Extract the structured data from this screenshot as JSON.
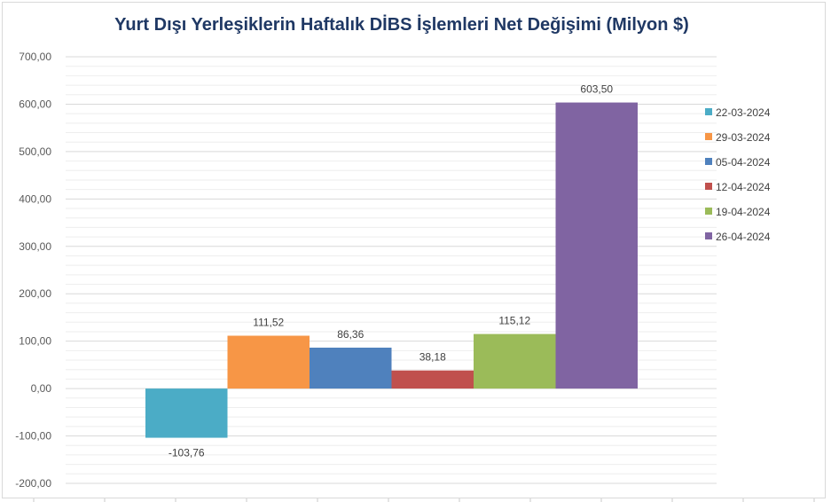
{
  "chart_data": {
    "type": "bar",
    "title": "Yurt Dışı Yerleşiklerin Haftalık DİBS İşlemleri Net Değişimi (Milyon $)",
    "xlabel": "",
    "ylabel": "",
    "ylim": [
      -200,
      700
    ],
    "y_ticks": [
      700,
      600,
      500,
      400,
      300,
      200,
      100,
      0,
      -100,
      -200
    ],
    "y_tick_labels": [
      "700,00",
      "600,00",
      "500,00",
      "400,00",
      "300,00",
      "200,00",
      "100,00",
      "0,00",
      "-100,00",
      "-200,00"
    ],
    "grid": true,
    "legend_position": "right",
    "series": [
      {
        "name": "22-03-2024",
        "value": -103.76,
        "label": "-103,76",
        "color": "#4bacc6"
      },
      {
        "name": "29-03-2024",
        "value": 111.52,
        "label": "111,52",
        "color": "#f79646"
      },
      {
        "name": "05-04-2024",
        "value": 86.36,
        "label": "86,36",
        "color": "#4f81bd"
      },
      {
        "name": "12-04-2024",
        "value": 38.18,
        "label": "38,18",
        "color": "#c0504d"
      },
      {
        "name": "19-04-2024",
        "value": 115.12,
        "label": "115,12",
        "color": "#9bbb59"
      },
      {
        "name": "26-04-2024",
        "value": 603.5,
        "label": "603,50",
        "color": "#8064a2"
      }
    ]
  }
}
